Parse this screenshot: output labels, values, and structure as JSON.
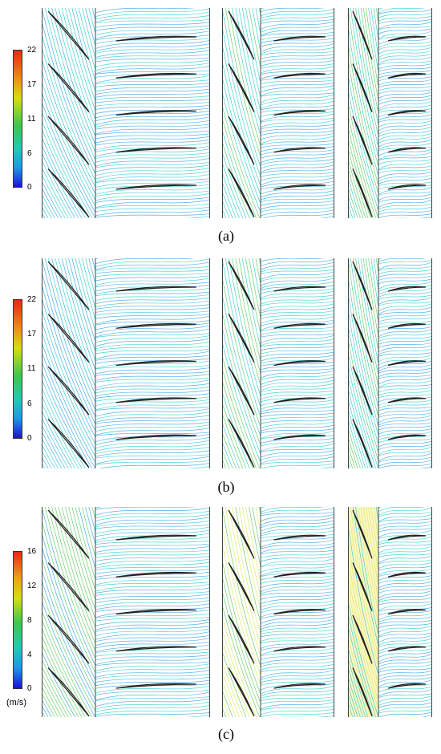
{
  "rows": [
    {
      "caption": "(a)",
      "ticks": [
        "22",
        "17",
        "11",
        "6",
        "0"
      ],
      "unit": "",
      "mode": "a"
    },
    {
      "caption": "(b)",
      "ticks": [
        "22",
        "17",
        "11",
        "6",
        "0"
      ],
      "unit": "",
      "mode": "b"
    },
    {
      "caption": "(c)",
      "ticks": [
        "16",
        "12",
        "8",
        "4",
        "0"
      ],
      "unit": "(m/s)",
      "mode": "c"
    }
  ],
  "colors": {
    "blue": "#2a9fe0",
    "cyan": "#27c8c8",
    "green": "#56c953",
    "yellow": "#d6e85a",
    "blade": "#222222"
  }
}
